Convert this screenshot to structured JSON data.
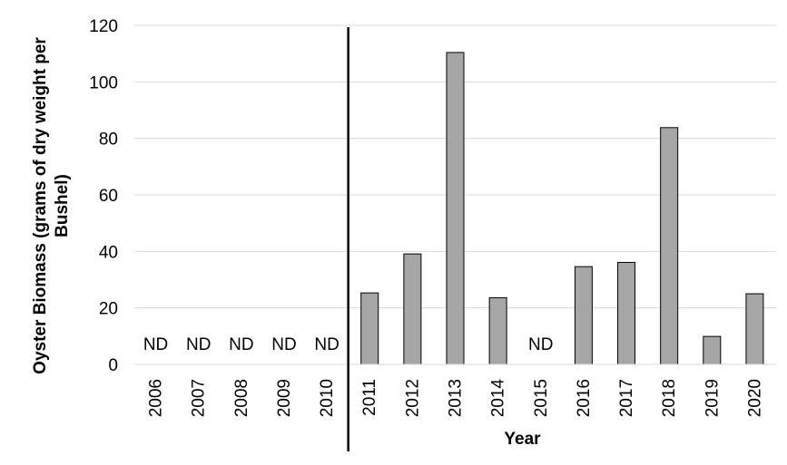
{
  "chart_data": {
    "type": "bar",
    "categories": [
      "2006",
      "2007",
      "2008",
      "2009",
      "2010",
      "2011",
      "2012",
      "2013",
      "2014",
      "2015",
      "2016",
      "2017",
      "2018",
      "2019",
      "2020"
    ],
    "values": [
      null,
      null,
      null,
      null,
      null,
      25.3,
      39.1,
      110.4,
      23.6,
      null,
      34.6,
      36.1,
      83.8,
      9.9,
      25.0
    ],
    "no_data_label": "ND",
    "xlabel": "Year",
    "ylabel": "Oyster Biomass (grams of dry weight per Bushel)",
    "ylabel_lines": [
      "Oyster Biomass (grams of dry weight per",
      "Bushel)"
    ],
    "ylim": [
      0,
      120
    ],
    "yticks": [
      0,
      20,
      40,
      60,
      80,
      100,
      120
    ],
    "grid": true,
    "bar_color": "#a6a6a6",
    "divider_after_category": "2010"
  }
}
